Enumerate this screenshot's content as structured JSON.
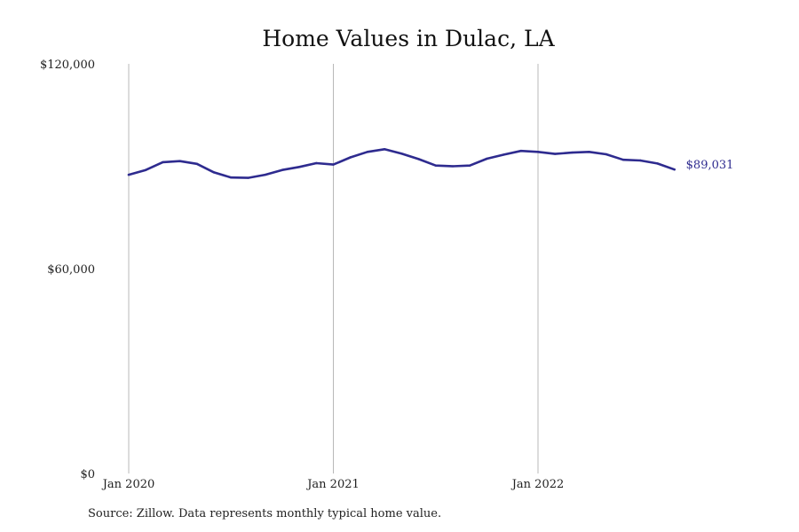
{
  "chart_data": {
    "type": "line",
    "title": "Home Values in Dulac, LA",
    "xlabel": "",
    "ylabel": "",
    "ylim": [
      0,
      120000
    ],
    "y_ticks": [
      {
        "value": 0,
        "label": "$0"
      },
      {
        "value": 60000,
        "label": "$60,000"
      },
      {
        "value": 120000,
        "label": "$120,000"
      }
    ],
    "x_ticks": [
      {
        "date": "2020-01",
        "label": "Jan 2020"
      },
      {
        "date": "2021-01",
        "label": "Jan 2021"
      },
      {
        "date": "2022-01",
        "label": "Jan 2022"
      }
    ],
    "x_range": [
      "2020-01",
      "2022-09"
    ],
    "vertical_gridlines": true,
    "horizontal_gridlines": false,
    "legend": "none",
    "series": [
      {
        "color": "#2e2b8f",
        "end_label": "$89,031",
        "points": [
          {
            "x": "2020-01",
            "y": 87500
          },
          {
            "x": "2020-02",
            "y": 88900
          },
          {
            "x": "2020-03",
            "y": 91200
          },
          {
            "x": "2020-04",
            "y": 91500
          },
          {
            "x": "2020-05",
            "y": 90700
          },
          {
            "x": "2020-06",
            "y": 88200
          },
          {
            "x": "2020-07",
            "y": 86700
          },
          {
            "x": "2020-08",
            "y": 86600
          },
          {
            "x": "2020-09",
            "y": 87500
          },
          {
            "x": "2020-10",
            "y": 88900
          },
          {
            "x": "2020-11",
            "y": 89800
          },
          {
            "x": "2020-12",
            "y": 90900
          },
          {
            "x": "2021-01",
            "y": 90500
          },
          {
            "x": "2021-02",
            "y": 92600
          },
          {
            "x": "2021-03",
            "y": 94200
          },
          {
            "x": "2021-04",
            "y": 95000
          },
          {
            "x": "2021-05",
            "y": 93700
          },
          {
            "x": "2021-06",
            "y": 92100
          },
          {
            "x": "2021-07",
            "y": 90200
          },
          {
            "x": "2021-08",
            "y": 90000
          },
          {
            "x": "2021-09",
            "y": 90200
          },
          {
            "x": "2021-10",
            "y": 92200
          },
          {
            "x": "2021-11",
            "y": 93400
          },
          {
            "x": "2021-12",
            "y": 94500
          },
          {
            "x": "2022-01",
            "y": 94200
          },
          {
            "x": "2022-02",
            "y": 93600
          },
          {
            "x": "2022-03",
            "y": 94000
          },
          {
            "x": "2022-04",
            "y": 94200
          },
          {
            "x": "2022-05",
            "y": 93500
          },
          {
            "x": "2022-06",
            "y": 91900
          },
          {
            "x": "2022-07",
            "y": 91700
          },
          {
            "x": "2022-08",
            "y": 90800
          },
          {
            "x": "2022-09",
            "y": 89031
          }
        ]
      }
    ]
  },
  "footer": {
    "source": "Source: Zillow. Data represents monthly typical home value."
  }
}
